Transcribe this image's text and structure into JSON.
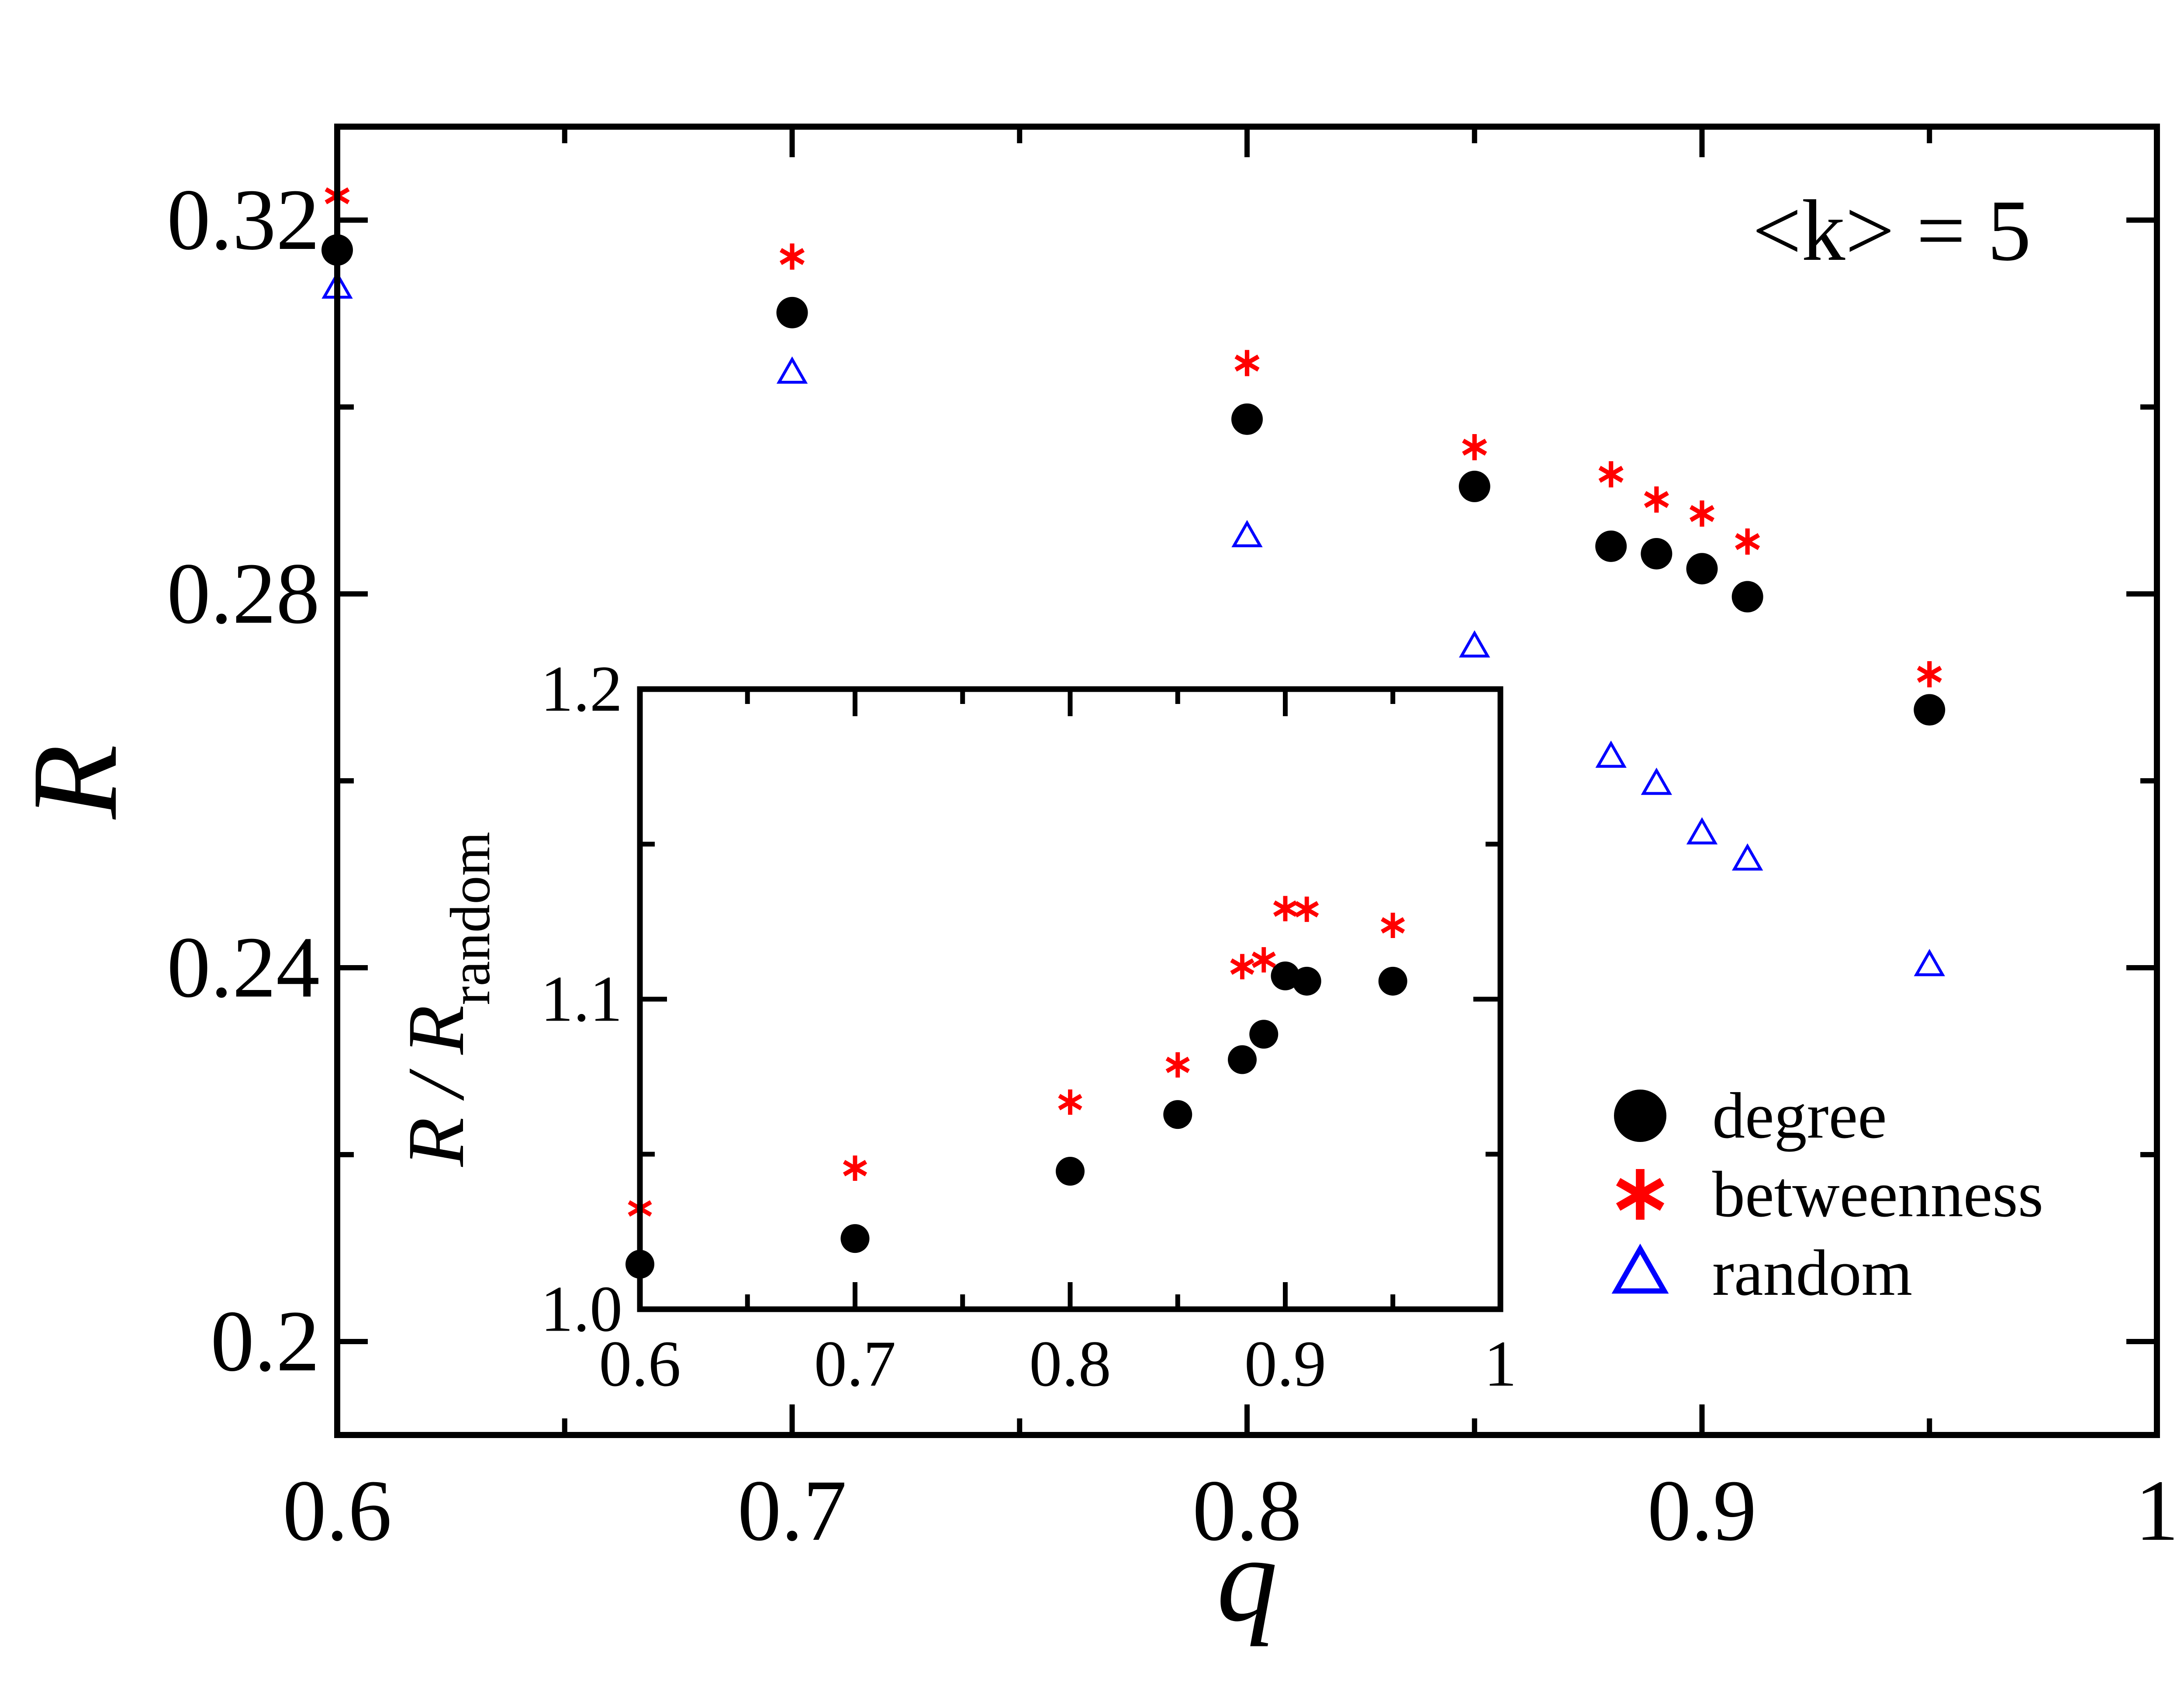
{
  "chart_data": [
    {
      "type": "scatter",
      "xlabel": "q",
      "ylabel": "R",
      "xlim": [
        0.6,
        1.0
      ],
      "ylim": [
        0.19,
        0.33
      ],
      "xticks": [
        0.6,
        0.7,
        0.8,
        0.9,
        1.0
      ],
      "xtick_labels": [
        "0.6",
        "0.7",
        "0.8",
        "0.9",
        "1"
      ],
      "yticks": [
        0.2,
        0.24,
        0.28,
        0.32
      ],
      "ytick_labels": [
        "0.2",
        "0.24",
        "0.28",
        "0.32"
      ],
      "annotation": "<k> = 5",
      "legend_position": "bottom-right",
      "grid": false,
      "series": [
        {
          "name": "degree",
          "marker": "circle",
          "color": "#000000",
          "x": [
            0.6,
            0.7,
            0.8,
            0.85,
            0.88,
            0.89,
            0.9,
            0.91,
            0.95
          ],
          "y": [
            0.3168,
            0.3101,
            0.2987,
            0.2915,
            0.2851,
            0.2843,
            0.2827,
            0.2797,
            0.2676
          ]
        },
        {
          "name": "betweenness",
          "marker": "asterisk",
          "color": "#ff0000",
          "x": [
            0.6,
            0.7,
            0.8,
            0.85,
            0.88,
            0.89,
            0.9,
            0.91,
            0.95
          ],
          "y": [
            0.3226,
            0.3161,
            0.3047,
            0.2957,
            0.2928,
            0.2901,
            0.2886,
            0.2856,
            0.2714
          ]
        },
        {
          "name": "random",
          "marker": "triangle",
          "color": "#0000ff",
          "x": [
            0.6,
            0.7,
            0.8,
            0.85,
            0.88,
            0.89,
            0.9,
            0.91,
            0.95
          ],
          "y": [
            0.3128,
            0.3037,
            0.2862,
            0.2744,
            0.2626,
            0.2597,
            0.2544,
            0.2516,
            0.2403
          ]
        }
      ]
    },
    {
      "type": "scatter",
      "xlabel": "R / R",
      "xlabel_sub": "random",
      "ylabel": "R / R",
      "ylabel_sub": "random",
      "xlim": [
        0.6,
        1.0
      ],
      "ylim": [
        1.0,
        1.2
      ],
      "xticks": [
        0.6,
        0.7,
        0.8,
        0.9,
        1.0
      ],
      "xtick_labels": [
        "0.6",
        "0.7",
        "0.8",
        "0.9",
        "1"
      ],
      "yticks": [
        1.0,
        1.1,
        1.2
      ],
      "ytick_labels": [
        "1.0",
        "1.1",
        "1.2"
      ],
      "grid": false,
      "series": [
        {
          "name": "degree",
          "marker": "circle",
          "color": "#000000",
          "x": [
            0.6,
            0.7,
            0.8,
            0.85,
            0.88,
            0.89,
            0.9,
            0.91,
            0.95
          ],
          "y": [
            1.0145,
            1.0228,
            1.0445,
            1.0628,
            1.0805,
            1.0887,
            1.1075,
            1.1058,
            1.1058
          ]
        },
        {
          "name": "betweenness",
          "marker": "asterisk",
          "color": "#ff0000",
          "x": [
            0.6,
            0.7,
            0.8,
            0.85,
            0.88,
            0.89,
            0.9,
            0.91,
            0.95
          ],
          "y": [
            1.0325,
            1.0455,
            1.0668,
            1.0788,
            1.1105,
            1.1127,
            1.1292,
            1.129,
            1.1238
          ]
        }
      ]
    }
  ]
}
